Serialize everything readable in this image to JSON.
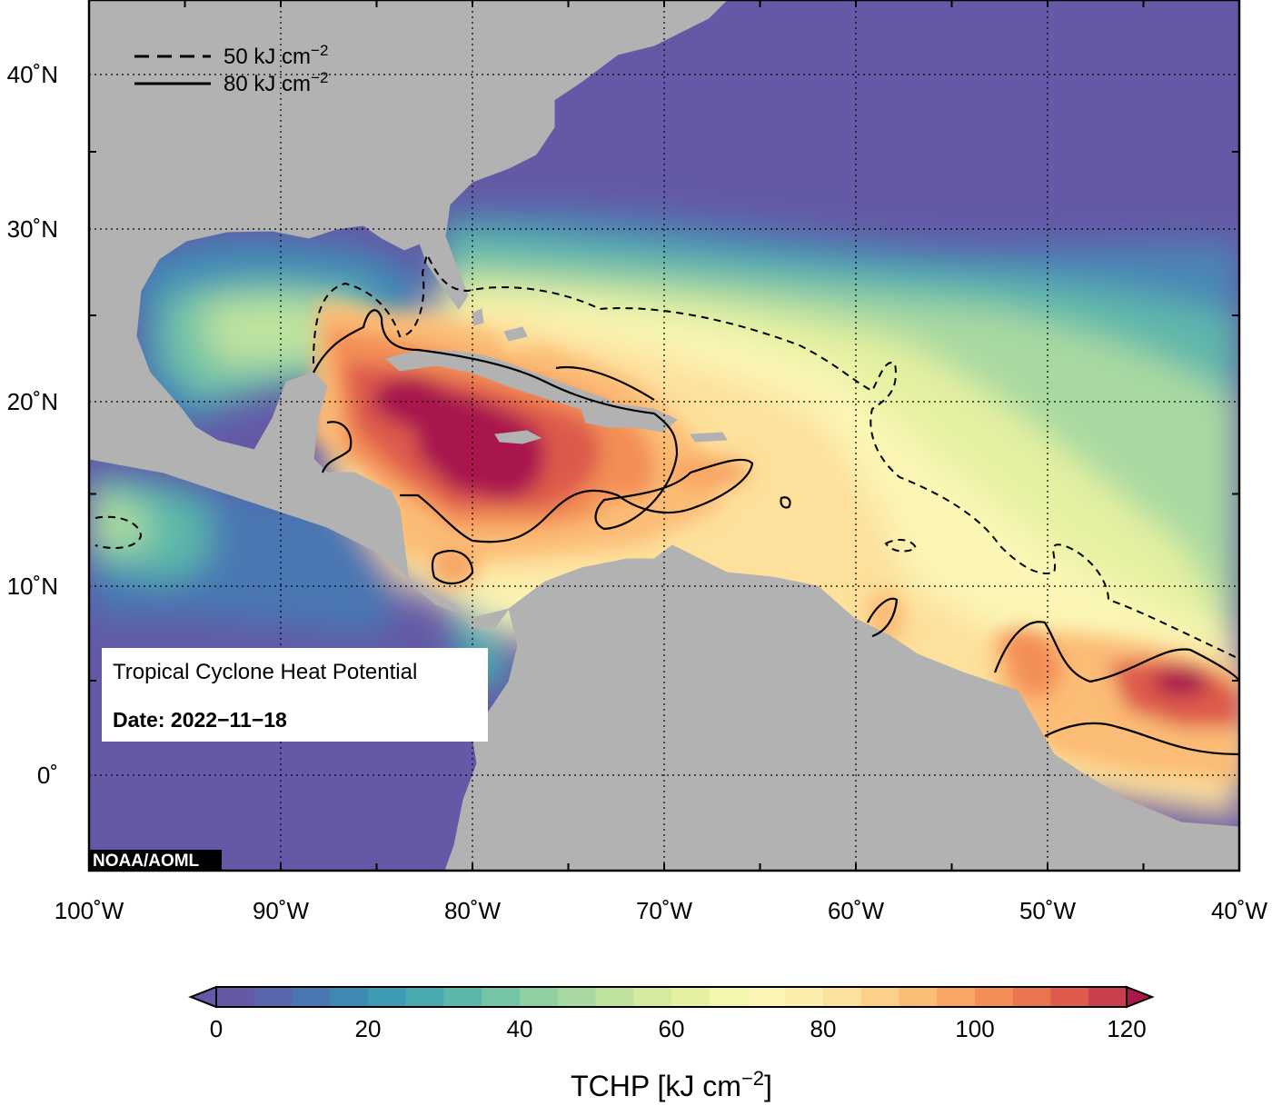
{
  "map": {
    "lon_ticks": [
      "100˚W",
      "90˚W",
      "80˚W",
      "70˚W",
      "60˚W",
      "50˚W",
      "40˚W"
    ],
    "lat_ticks": [
      "40˚N",
      "30˚N",
      "20˚N",
      "10˚N",
      "0˚"
    ],
    "extent": {
      "lon_min": -100,
      "lon_max": -40,
      "lat_min": -5,
      "lat_max": 45
    }
  },
  "legend": {
    "dashed": {
      "value": "50",
      "unit": "kJ cm",
      "exp": "−2"
    },
    "solid": {
      "value": "80",
      "unit": "kJ cm",
      "exp": "−2"
    }
  },
  "info_box": {
    "title": "Tropical Cyclone Heat Potential",
    "date_label": "Date:",
    "date_value": "2022−11−18"
  },
  "credit": "NOAA/AOML",
  "colorbar": {
    "ticks": [
      "0",
      "20",
      "40",
      "60",
      "80",
      "100",
      "120"
    ],
    "title_main": "TCHP [kJ cm",
    "title_exp": "−2",
    "title_end": "]",
    "min": 0,
    "max": 120,
    "step": 5,
    "colors": [
      "#6459a6",
      "#5766ae",
      "#4a77b3",
      "#3f8ab5",
      "#3f9bb4",
      "#49aab0",
      "#5bb8a9",
      "#74c4a6",
      "#8fcfa2",
      "#a8d9a1",
      "#bfe39f",
      "#d3ea9f",
      "#e5f1a1",
      "#f3f6ac",
      "#fbf6b6",
      "#fdedaa",
      "#fde09b",
      "#fdd08a",
      "#fbbc76",
      "#f8a665",
      "#f38e56",
      "#ea744e",
      "#dd5a4c",
      "#c8404d",
      "#a8184d"
    ]
  },
  "colors": {
    "land": "#b2b2b2",
    "ocean_low": "#6459a6",
    "grid": "#000000"
  }
}
